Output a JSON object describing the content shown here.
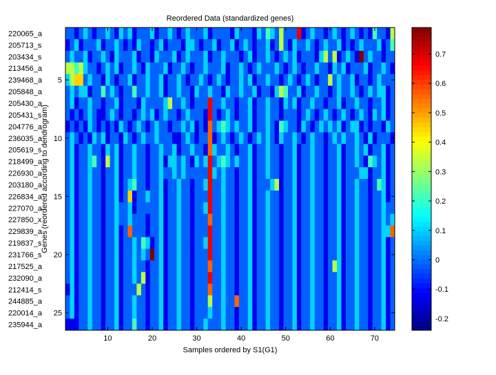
{
  "chart_data": {
    "type": "heatmap",
    "title": "Reordered Data (standardized genes)",
    "xlabel": "Samples ordered by S1(G1)",
    "ylabel": "Genes (reordered according to dendrogram)",
    "x_ticks": [
      10,
      20,
      30,
      40,
      50,
      60,
      70
    ],
    "y_ticks": [
      5,
      10,
      15,
      20,
      25
    ],
    "n_columns": 74,
    "row_labels": [
      "220065_a",
      "205713_s",
      "203434_s",
      "213456_a",
      "239468_a",
      "205848_a",
      "205430_a",
      "205431_s",
      "204776_a",
      "236035_a",
      "205619_s",
      "218499_a",
      "226930_a",
      "203180_a",
      "226834_a",
      "227070_a",
      "227850_x",
      "229839_a",
      "219837_s",
      "231766_s",
      "217525_a",
      "232090_a",
      "212414_s",
      "244885_a",
      "220014_a",
      "235944_a"
    ],
    "colorbar": {
      "min": -0.24,
      "max": 0.79,
      "ticks": [
        -0.2,
        -0.1,
        0,
        0.1,
        0.2,
        0.3,
        0.4,
        0.5,
        0.6,
        0.7
      ],
      "tick_labels": [
        "-0.2",
        "-0.1",
        "0",
        "0.1",
        "0.2",
        "0.3",
        "0.4",
        "0.5",
        "0.6",
        "0.7"
      ],
      "colormap": "jet"
    },
    "value_encoding": "each digit d (0-9) = -0.24 + d*(1.03/9)",
    "matrix_levels": [
      "22123212232132312223122321232223122221322213243252228123221232123212142215",
      "12312223122321213221231222133212231223123212231252132232123223121232223124",
      "23223122321322231221322231232223122322212312232123231222135251232192322122",
      "55453221232312232132223122321223222312232123222321232122322132312223122321",
      "35662322132122312232231223212232123212232312232212321232122523223122123222",
      "23233122423212242232231223221322322132232231221354223122322123223212323312",
      "23122322122312221322223522321222822322122312232213231223221223122322122312",
      "21212321123212212323123221232221821232122312232212221232123212321232132312",
      "12121321212132123212322122323121723432322312232143221321232323123312122132",
      "23212132312213212322322211232122712321232123232132232123221232322321312221",
      "23122322132312232212232231223221732232122312232212231223221223122323122312",
      "23122342152312232212231332321323823432322312232212231223221223122321432312",
      "23122322122312232212232232322222832322122312232212231223221223122233122312",
      "23122322122312342212231223221223822322122312223512231223221223122322124312",
      "23122322122312612232231223221222822322122312232212231223221223122322122312",
      "23122322122322312222231223221223822322122312232212231223221223122322122322",
      "23122322122322322212231223221222722322122312232212231223221223122322122323",
      "23122322122312722212231223221222822322122312232212231223221223122322122337",
      "23122322122312232431231223221223822322122312232212231223221223122322122312",
      "23122322122312232329231223221222822322122312232212231223221223122322122312",
      "23122322122312232212231223221222722322122312232212231223221253122322122312",
      "23122322122312232512231223221222822322122312232212231223221223122322122312",
      "13122322122312225212231223221222722322122312232212231223221223122322122312",
      "23122322122312232212231223221222522322722312232212231223221223122322122312",
      "23122322122312232212231223221222322322122312232212231223221223122322122312",
      "11122322122312242212231223221223222322122312232212231223221223122322122312"
    ]
  }
}
